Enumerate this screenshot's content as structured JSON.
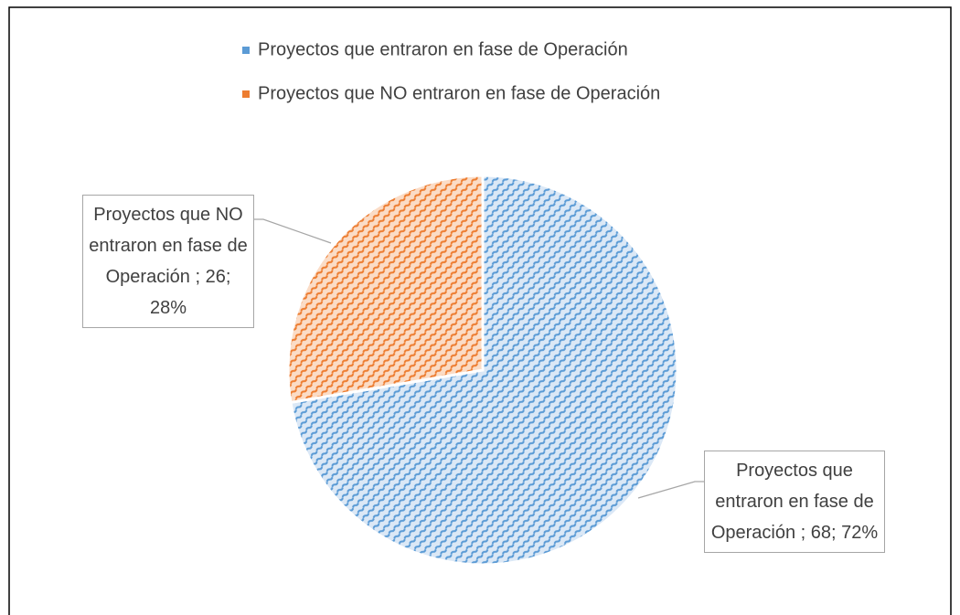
{
  "chart_data": {
    "type": "pie",
    "categories": [
      "Proyectos que entraron en fase de Operación",
      "Proyectos que  NO entraron en fase de Operación"
    ],
    "values": [
      68,
      26
    ],
    "value_labels": [
      "Proyectos que entraron en fase de Operación ; 68; 72%",
      "Proyectos que NO entraron en fase de Operación ; 26; 28%"
    ],
    "colors": [
      "#5b9bd5",
      "#ed7d31"
    ],
    "legend": "top"
  }
}
